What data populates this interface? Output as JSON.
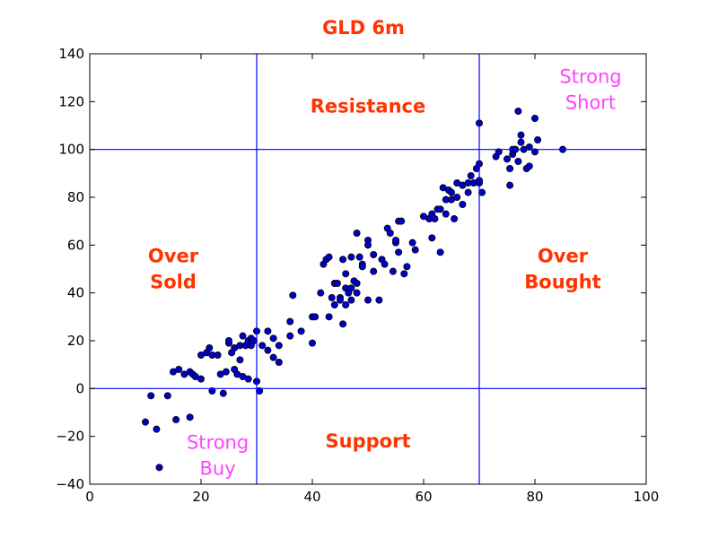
{
  "chart_data": {
    "type": "scatter",
    "title": "GLD 6m",
    "xlim": [
      0,
      100
    ],
    "ylim": [
      -40,
      140
    ],
    "xticks": [
      "0",
      "20",
      "40",
      "60",
      "80",
      "100"
    ],
    "yticks": [
      "−40",
      "−20",
      "0",
      "20",
      "40",
      "60",
      "80",
      "100",
      "120",
      "140"
    ],
    "grid": false,
    "reference_lines": {
      "vertical": [
        30,
        70
      ],
      "horizontal": [
        0,
        100
      ]
    },
    "zone_labels": [
      {
        "text": [
          "Resistance"
        ],
        "x": 50,
        "y": 118,
        "color": "#ff3300",
        "bold": true
      },
      {
        "text": [
          "Support"
        ],
        "x": 50,
        "y": -22,
        "color": "#ff3300",
        "bold": true
      },
      {
        "text": [
          "Over",
          "Sold"
        ],
        "x": 15,
        "y": 50,
        "color": "#ff3300",
        "bold": true
      },
      {
        "text": [
          "Over",
          "Bought"
        ],
        "x": 85,
        "y": 50,
        "color": "#ff3300",
        "bold": true
      },
      {
        "text": [
          "Strong",
          "Short"
        ],
        "x": 90,
        "y": 125,
        "color": "#ff44ff",
        "bold": false
      },
      {
        "text": [
          "Strong",
          "Buy"
        ],
        "x": 23,
        "y": -28,
        "color": "#ff44ff",
        "bold": false
      }
    ],
    "colors": {
      "point_fill": "#0000cc",
      "point_edge": "#000000",
      "line": "#0000ff",
      "title": "#ff3300"
    },
    "points": [
      [
        10,
        -14
      ],
      [
        11,
        -3
      ],
      [
        12,
        -17
      ],
      [
        12.5,
        -33
      ],
      [
        14,
        -3
      ],
      [
        15,
        7
      ],
      [
        15.5,
        -13
      ],
      [
        16,
        8
      ],
      [
        17,
        6
      ],
      [
        18,
        7
      ],
      [
        18,
        -12
      ],
      [
        18.5,
        6
      ],
      [
        19,
        5
      ],
      [
        20,
        4
      ],
      [
        20,
        14
      ],
      [
        21,
        15
      ],
      [
        21.5,
        17
      ],
      [
        22,
        14
      ],
      [
        22,
        -1
      ],
      [
        23,
        14
      ],
      [
        23.5,
        6
      ],
      [
        24,
        -2
      ],
      [
        24.5,
        7
      ],
      [
        25,
        19
      ],
      [
        25,
        20
      ],
      [
        25.5,
        15
      ],
      [
        26,
        17
      ],
      [
        26,
        8
      ],
      [
        26.5,
        6
      ],
      [
        27,
        12
      ],
      [
        27,
        18
      ],
      [
        27.5,
        22
      ],
      [
        27.5,
        5
      ],
      [
        28,
        18
      ],
      [
        28.5,
        20
      ],
      [
        28.5,
        4
      ],
      [
        29,
        21
      ],
      [
        29,
        18
      ],
      [
        29.5,
        20
      ],
      [
        30,
        24
      ],
      [
        30,
        3
      ],
      [
        30.5,
        -1
      ],
      [
        31,
        18
      ],
      [
        32,
        24
      ],
      [
        32,
        16
      ],
      [
        33,
        21
      ],
      [
        33,
        13
      ],
      [
        34,
        18
      ],
      [
        34,
        11
      ],
      [
        36,
        22
      ],
      [
        36,
        28
      ],
      [
        36.5,
        39
      ],
      [
        38,
        24
      ],
      [
        40,
        30
      ],
      [
        40,
        19
      ],
      [
        40.5,
        30
      ],
      [
        41.5,
        40
      ],
      [
        42,
        52
      ],
      [
        42.5,
        54
      ],
      [
        43,
        55
      ],
      [
        43,
        30
      ],
      [
        43.5,
        38
      ],
      [
        44,
        44
      ],
      [
        44,
        35
      ],
      [
        44.5,
        44
      ],
      [
        45,
        38
      ],
      [
        45,
        37
      ],
      [
        45.5,
        54
      ],
      [
        45.5,
        27
      ],
      [
        46,
        48
      ],
      [
        46,
        42
      ],
      [
        46,
        35
      ],
      [
        46.5,
        40
      ],
      [
        47,
        37
      ],
      [
        47,
        55
      ],
      [
        47,
        42
      ],
      [
        47.5,
        45
      ],
      [
        48,
        44
      ],
      [
        48,
        65
      ],
      [
        48,
        40
      ],
      [
        48.5,
        55
      ],
      [
        49,
        52
      ],
      [
        49,
        51
      ],
      [
        50,
        62
      ],
      [
        50,
        60
      ],
      [
        50,
        37
      ],
      [
        51,
        49
      ],
      [
        51,
        56
      ],
      [
        52,
        37
      ],
      [
        52.5,
        54
      ],
      [
        53,
        52
      ],
      [
        53.5,
        67
      ],
      [
        54,
        65
      ],
      [
        54.5,
        49
      ],
      [
        55,
        61
      ],
      [
        55,
        62
      ],
      [
        55.5,
        70
      ],
      [
        55.5,
        57
      ],
      [
        56,
        70
      ],
      [
        56.5,
        48
      ],
      [
        57,
        51
      ],
      [
        58,
        61
      ],
      [
        58.5,
        58
      ],
      [
        60,
        72
      ],
      [
        61,
        71
      ],
      [
        61.5,
        73
      ],
      [
        61.5,
        63
      ],
      [
        62,
        71
      ],
      [
        62.5,
        75
      ],
      [
        63,
        57
      ],
      [
        63,
        75
      ],
      [
        63.5,
        84
      ],
      [
        64,
        73
      ],
      [
        64,
        79
      ],
      [
        64.5,
        83
      ],
      [
        65,
        79
      ],
      [
        65,
        82
      ],
      [
        65.5,
        71
      ],
      [
        66,
        80
      ],
      [
        66,
        86
      ],
      [
        67,
        77
      ],
      [
        67,
        85
      ],
      [
        68,
        82
      ],
      [
        68,
        86
      ],
      [
        68.5,
        89
      ],
      [
        69,
        86
      ],
      [
        69.5,
        92
      ],
      [
        70,
        86
      ],
      [
        70,
        87
      ],
      [
        70,
        94
      ],
      [
        70,
        111
      ],
      [
        70.5,
        82
      ],
      [
        73,
        97
      ],
      [
        73.5,
        99
      ],
      [
        75,
        96
      ],
      [
        75.5,
        85
      ],
      [
        75.5,
        92
      ],
      [
        76,
        98
      ],
      [
        76,
        100
      ],
      [
        76.5,
        100
      ],
      [
        77,
        95
      ],
      [
        77,
        116
      ],
      [
        77.5,
        103
      ],
      [
        77.5,
        106
      ],
      [
        78,
        100
      ],
      [
        78.5,
        92
      ],
      [
        79,
        101
      ],
      [
        79,
        93
      ],
      [
        80,
        113
      ],
      [
        80,
        99
      ],
      [
        80.5,
        104
      ],
      [
        85,
        100
      ]
    ]
  }
}
